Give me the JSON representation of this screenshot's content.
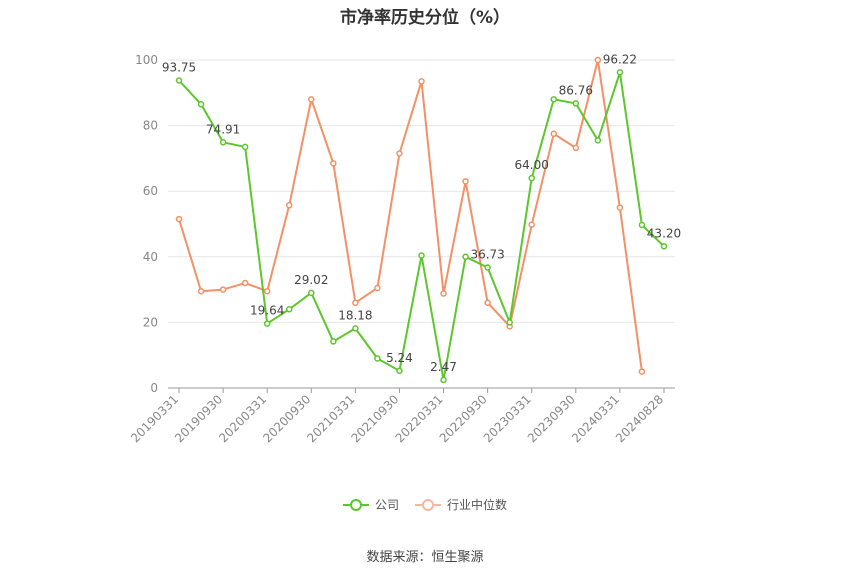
{
  "chart_data": {
    "type": "line",
    "title": "市净率历史分位（%）",
    "source": "数据来源：恒生聚源",
    "ylim": [
      0,
      100
    ],
    "yticks": [
      "0",
      "20",
      "40",
      "60",
      "80",
      "100"
    ],
    "x": [
      "20190331",
      "20190630",
      "20190930",
      "20191231",
      "20200331",
      "20200630",
      "20200930",
      "20201231",
      "20210331",
      "20210630",
      "20210930",
      "20211231",
      "20220331",
      "20220630",
      "20220930",
      "20221231",
      "20230331",
      "20230630",
      "20230930",
      "20231231",
      "20240331",
      "20240630",
      "20240828"
    ],
    "xtick_labels": [
      "20190331",
      "20190930",
      "20200331",
      "20200930",
      "20210331",
      "20210930",
      "20220331",
      "20220930",
      "20230331",
      "20230930",
      "20240331",
      "20240828"
    ],
    "xtick_index": [
      0,
      2,
      4,
      6,
      8,
      10,
      12,
      14,
      16,
      18,
      20,
      22
    ],
    "grid": true,
    "legend_position": "bottom",
    "series": [
      {
        "name": "公司",
        "color": "#5cc72c",
        "values": [
          93.75,
          86.5,
          74.91,
          73.5,
          19.64,
          24.0,
          29.02,
          14.2,
          18.18,
          9.0,
          5.24,
          40.4,
          2.47,
          40.0,
          36.73,
          20.0,
          64.0,
          88.0,
          86.76,
          75.5,
          96.22,
          49.7,
          43.2
        ],
        "labels": {
          "0": "93.75",
          "2": "74.91",
          "4": "19.64",
          "6": "29.02",
          "8": "18.18",
          "10": "5.24",
          "12": "2.47",
          "14": "36.73",
          "16": "64.00",
          "18": "86.76",
          "20": "96.22",
          "22": "43.20"
        }
      },
      {
        "name": "行业中位数",
        "color": "#f39066",
        "values": [
          51.5,
          29.5,
          30.0,
          32.0,
          29.5,
          55.7,
          88.0,
          68.5,
          26.0,
          30.5,
          71.5,
          93.5,
          28.8,
          63.0,
          26.0,
          18.8,
          49.8,
          77.5,
          73.2,
          100.0,
          55.0,
          5.0,
          null
        ]
      }
    ]
  }
}
